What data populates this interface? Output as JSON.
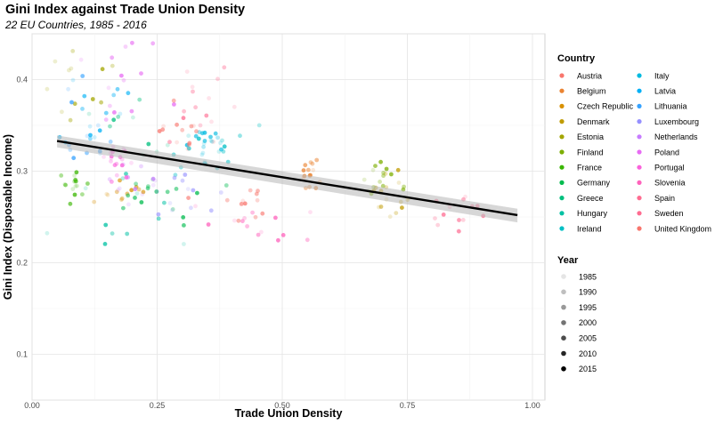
{
  "chart_data": {
    "type": "scatter",
    "title": "Gini Index against Trade Union Density",
    "subtitle": "22 EU Countries, 1985 - 2016",
    "xlabel": "Trade Union Density",
    "ylabel": "Gini Index (Disposable Income)",
    "xlim": [
      0.0,
      1.0
    ],
    "ylim": [
      0.05,
      0.45
    ],
    "x_ticks": [
      0.0,
      0.25,
      0.5,
      0.75,
      1.0
    ],
    "x_tick_labels": [
      "0.00",
      "0.25",
      "0.50",
      "0.75",
      "1.00"
    ],
    "y_ticks": [
      0.1,
      0.2,
      0.3,
      0.4
    ],
    "y_tick_labels": [
      "0.1",
      "0.2",
      "0.3",
      "0.4"
    ],
    "grid": true,
    "legend_position": "right",
    "trend_line": {
      "x": [
        0.05,
        0.97
      ],
      "y": [
        0.333,
        0.252
      ],
      "band_upper": [
        0.339,
        0.259
      ],
      "band_lower": [
        0.326,
        0.244
      ],
      "color": "#000000",
      "band_color": "#bdbdbd"
    },
    "legend": {
      "country_title": "Country",
      "year_title": "Year",
      "countries": [
        {
          "name": "Austria",
          "color": "#F8766D"
        },
        {
          "name": "Belgium",
          "color": "#EA8331"
        },
        {
          "name": "Czech Republic",
          "color": "#D89000"
        },
        {
          "name": "Denmark",
          "color": "#C09B00"
        },
        {
          "name": "Estonia",
          "color": "#A3A500"
        },
        {
          "name": "Finland",
          "color": "#7CAE00"
        },
        {
          "name": "France",
          "color": "#39B600"
        },
        {
          "name": "Germany",
          "color": "#00BB4E"
        },
        {
          "name": "Greece",
          "color": "#00BF7D"
        },
        {
          "name": "Hungary",
          "color": "#00C1A3"
        },
        {
          "name": "Ireland",
          "color": "#00BFC4"
        },
        {
          "name": "Italy",
          "color": "#00BAE0"
        },
        {
          "name": "Latvia",
          "color": "#00B0F6"
        },
        {
          "name": "Lithuania",
          "color": "#35A2FF"
        },
        {
          "name": "Luxembourg",
          "color": "#9590FF"
        },
        {
          "name": "Netherlands",
          "color": "#C77CFF"
        },
        {
          "name": "Poland",
          "color": "#E76BF3"
        },
        {
          "name": "Portugal",
          "color": "#FA62DB"
        },
        {
          "name": "Slovenia",
          "color": "#FF62BC"
        },
        {
          "name": "Spain",
          "color": "#FF6C91"
        },
        {
          "name": "Sweden",
          "color": "#FF6C91"
        },
        {
          "name": "United Kingdom",
          "color": "#F8766D"
        }
      ],
      "years": [
        {
          "label": "1985",
          "alpha": 0.1
        },
        {
          "label": "1990",
          "alpha": 0.25
        },
        {
          "label": "1995",
          "alpha": 0.4
        },
        {
          "label": "2000",
          "alpha": 0.55
        },
        {
          "label": "2005",
          "alpha": 0.7
        },
        {
          "label": "2010",
          "alpha": 0.85
        },
        {
          "label": "2015",
          "alpha": 1.0
        }
      ]
    },
    "clusters": [
      {
        "name": "Austria",
        "cx": 0.4,
        "cy": 0.27,
        "sx": 0.05,
        "sy": 0.012,
        "n": 12
      },
      {
        "name": "Belgium",
        "cx": 0.55,
        "cy": 0.3,
        "sx": 0.012,
        "sy": 0.012,
        "n": 16
      },
      {
        "name": "Czech Republic",
        "cx": 0.18,
        "cy": 0.275,
        "sx": 0.025,
        "sy": 0.008,
        "n": 12
      },
      {
        "name": "Denmark",
        "cx": 0.72,
        "cy": 0.275,
        "sx": 0.025,
        "sy": 0.012,
        "n": 16
      },
      {
        "name": "Estonia",
        "cx": 0.08,
        "cy": 0.38,
        "sx": 0.04,
        "sy": 0.03,
        "n": 12
      },
      {
        "name": "Finland",
        "cx": 0.7,
        "cy": 0.29,
        "sx": 0.03,
        "sy": 0.012,
        "n": 16
      },
      {
        "name": "France",
        "cx": 0.09,
        "cy": 0.285,
        "sx": 0.01,
        "sy": 0.01,
        "n": 16
      },
      {
        "name": "Germany",
        "cx": 0.24,
        "cy": 0.275,
        "sx": 0.06,
        "sy": 0.015,
        "n": 16
      },
      {
        "name": "Greece",
        "cx": 0.2,
        "cy": 0.34,
        "sx": 0.06,
        "sy": 0.02,
        "n": 10
      },
      {
        "name": "Hungary",
        "cx": 0.22,
        "cy": 0.25,
        "sx": 0.07,
        "sy": 0.03,
        "n": 12
      },
      {
        "name": "Ireland",
        "cx": 0.38,
        "cy": 0.32,
        "sx": 0.07,
        "sy": 0.015,
        "n": 16
      },
      {
        "name": "Italy",
        "cx": 0.35,
        "cy": 0.33,
        "sx": 0.02,
        "sy": 0.01,
        "n": 18
      },
      {
        "name": "Latvia",
        "cx": 0.13,
        "cy": 0.36,
        "sx": 0.04,
        "sy": 0.02,
        "n": 16
      },
      {
        "name": "Lithuania",
        "cx": 0.12,
        "cy": 0.34,
        "sx": 0.03,
        "sy": 0.03,
        "n": 12
      },
      {
        "name": "Luxembourg",
        "cx": 0.3,
        "cy": 0.27,
        "sx": 0.05,
        "sy": 0.015,
        "n": 12
      },
      {
        "name": "Netherlands",
        "cx": 0.22,
        "cy": 0.28,
        "sx": 0.03,
        "sy": 0.015,
        "n": 12
      },
      {
        "name": "Poland",
        "cx": 0.2,
        "cy": 0.39,
        "sx": 0.05,
        "sy": 0.025,
        "n": 14
      },
      {
        "name": "Portugal",
        "cx": 0.17,
        "cy": 0.31,
        "sx": 0.015,
        "sy": 0.01,
        "n": 18
      },
      {
        "name": "Slovenia",
        "cx": 0.43,
        "cy": 0.24,
        "sx": 0.06,
        "sy": 0.012,
        "n": 14
      },
      {
        "name": "Spain",
        "cx": 0.32,
        "cy": 0.37,
        "sx": 0.04,
        "sy": 0.02,
        "n": 14
      },
      {
        "name": "Sweden",
        "cx": 0.85,
        "cy": 0.25,
        "sx": 0.05,
        "sy": 0.012,
        "n": 14
      },
      {
        "name": "United Kingdom",
        "cx": 0.27,
        "cy": 0.34,
        "sx": 0.04,
        "sy": 0.015,
        "n": 14
      }
    ]
  }
}
